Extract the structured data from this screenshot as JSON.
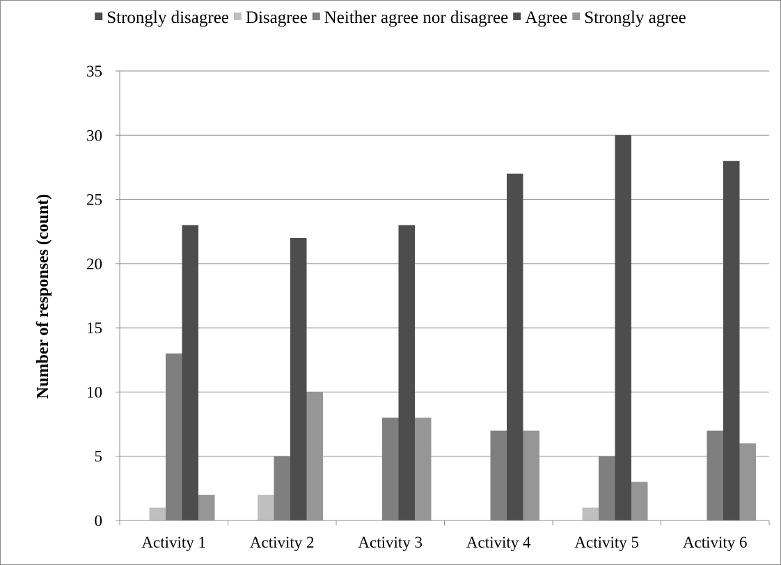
{
  "chart_data": {
    "type": "bar",
    "title": "",
    "xlabel": "",
    "ylabel": "Number of responses (count)",
    "ylim": [
      0,
      35
    ],
    "yticks": [
      0,
      5,
      10,
      15,
      20,
      25,
      30,
      35
    ],
    "grid": true,
    "legend_position": "top",
    "categories": [
      "Activity 1",
      "Activity 2",
      "Activity 3",
      "Activity 4",
      "Activity 5",
      "Activity 6"
    ],
    "series": [
      {
        "name": "Strongly disagree",
        "color": "#4d4d4d",
        "values": [
          0,
          0,
          0,
          0,
          0,
          0
        ]
      },
      {
        "name": "Disagree",
        "color": "#bfbfbf",
        "values": [
          1,
          2,
          0,
          0,
          1,
          0
        ]
      },
      {
        "name": "Neither agree nor disagree",
        "color": "#7f7f7f",
        "values": [
          13,
          5,
          8,
          7,
          5,
          7
        ]
      },
      {
        "name": "Agree",
        "color": "#4d4d4d",
        "values": [
          23,
          22,
          23,
          27,
          30,
          28
        ]
      },
      {
        "name": "Strongly agree",
        "color": "#969696",
        "values": [
          2,
          10,
          8,
          7,
          3,
          6
        ]
      }
    ]
  }
}
